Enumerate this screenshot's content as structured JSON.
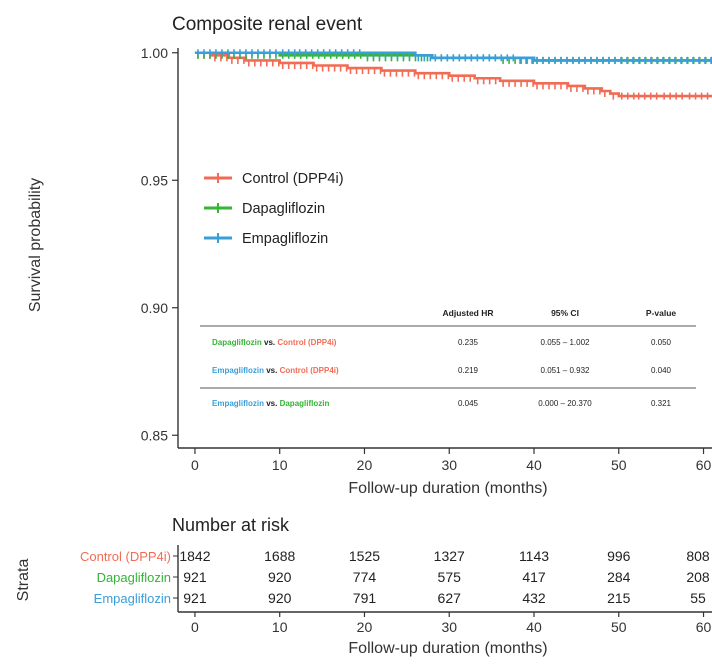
{
  "chart_data": [
    {
      "type": "line",
      "subtype": "kaplan-meier",
      "title": "Composite renal event",
      "xlabel": "Follow-up duration (months)",
      "ylabel": "Survival probability",
      "xlim": [
        -2,
        61
      ],
      "ylim": [
        0.845,
        1.005
      ],
      "x_ticks": [
        "0",
        "10",
        "20",
        "30",
        "40",
        "50",
        "60"
      ],
      "y_ticks": [
        "0.85",
        "0.90",
        "0.95",
        "1.00"
      ],
      "x_tick_values": [
        0,
        10,
        20,
        30,
        40,
        50,
        60
      ],
      "y_tick_values": [
        0.85,
        0.9,
        0.95,
        1.0
      ],
      "grid": false,
      "legend_position": "center-left",
      "series": [
        {
          "name": "Control (DPP4i)",
          "color": "#f26c55",
          "x": [
            0,
            2,
            4,
            6,
            10,
            14,
            18,
            22,
            26,
            30,
            33,
            36,
            40,
            44,
            46,
            48,
            49,
            50,
            52,
            55,
            58,
            61
          ],
          "y": [
            1.0,
            0.999,
            0.998,
            0.997,
            0.996,
            0.995,
            0.994,
            0.993,
            0.992,
            0.991,
            0.99,
            0.989,
            0.988,
            0.987,
            0.986,
            0.985,
            0.984,
            0.983,
            0.983,
            0.983,
            0.983,
            0.983
          ]
        },
        {
          "name": "Dapagliflozin",
          "color": "#35b435",
          "x": [
            0,
            10,
            20,
            28,
            36,
            40,
            50,
            61
          ],
          "y": [
            1.0,
            0.999,
            0.999,
            0.998,
            0.998,
            0.997,
            0.997,
            0.997
          ]
        },
        {
          "name": "Empagliflozin",
          "color": "#3a9fd8",
          "x": [
            0,
            10,
            12,
            20,
            26,
            28,
            38,
            40,
            61
          ],
          "y": [
            1.0,
            1.0,
            1.0,
            1.0,
            0.999,
            0.998,
            0.998,
            0.997,
            0.997
          ]
        }
      ],
      "hr_table": {
        "headers": [
          "Adjusted HR",
          "95% CI",
          "P-value"
        ],
        "rows": [
          {
            "a": "Dapagliflozin",
            "vs": "vs.",
            "b": "Control (DPP4i)",
            "a_color": "#35b435",
            "b_color": "#f26c55",
            "hr": "0.235",
            "ci": "0.055 – 1.002",
            "p": "0.050"
          },
          {
            "a": "Empagliflozin",
            "vs": "vs.",
            "b": "Control (DPP4i)",
            "a_color": "#3a9fd8",
            "b_color": "#f26c55",
            "hr": "0.219",
            "ci": "0.051 – 0.932",
            "p": "0.040"
          },
          {
            "a": "Empagliflozin",
            "vs": "vs.",
            "b": "Dapagliflozin",
            "a_color": "#3a9fd8",
            "b_color": "#35b435",
            "hr": "0.045",
            "ci": "0.000 – 20.370",
            "p": "0.321"
          }
        ]
      }
    },
    {
      "type": "table",
      "title": "Number at risk",
      "ylabel": "Strata",
      "xlabel": "Follow-up duration (months)",
      "x_ticks": [
        "0",
        "10",
        "20",
        "30",
        "40",
        "50",
        "60"
      ],
      "rows": [
        {
          "label": "Control (DPP4i)",
          "color": "#f26c55",
          "values": [
            "1842",
            "1688",
            "1525",
            "1327",
            "1143",
            "996",
            "808"
          ]
        },
        {
          "label": "Dapagliflozin",
          "color": "#35b435",
          "values": [
            "921",
            "920",
            "774",
            "575",
            "417",
            "284",
            "208"
          ]
        },
        {
          "label": "Empagliflozin",
          "color": "#3a9fd8",
          "values": [
            "921",
            "920",
            "791",
            "627",
            "432",
            "215",
            "55"
          ]
        }
      ]
    }
  ]
}
